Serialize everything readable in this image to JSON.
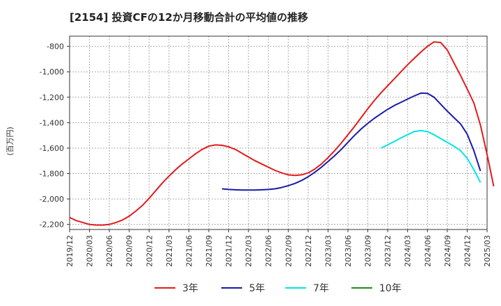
{
  "chart_data": {
    "type": "line",
    "title": "[2154]  投資CFの12か月移動合計の平均値の推移",
    "ylabel": "(百万円)",
    "xlabel": "",
    "ylim": [
      -2240,
      -720
    ],
    "yticks": [
      -800,
      -1000,
      -1200,
      -1400,
      -1600,
      -1800,
      -2000,
      -2200
    ],
    "ytick_labels": [
      "-800",
      "-1,000",
      "-1,200",
      "-1,400",
      "-1,600",
      "-1,800",
      "-2,000",
      "-2,200"
    ],
    "x_range": [
      "2019/12",
      "2025/03"
    ],
    "xtick_labels": [
      "2019/12",
      "2020/03",
      "2020/06",
      "2020/09",
      "2020/12",
      "2021/03",
      "2021/06",
      "2021/09",
      "2021/12",
      "2022/03",
      "2022/06",
      "2022/09",
      "2022/12",
      "2023/03",
      "2023/06",
      "2023/09",
      "2023/12",
      "2024/03",
      "2024/06",
      "2024/09",
      "2024/12",
      "2025/03"
    ],
    "grid": true,
    "legend_position": "bottom",
    "series": [
      {
        "name": "3年",
        "color": "#e31a1c",
        "points": [
          [
            "2019/12",
            -2145
          ],
          [
            "2020/01",
            -2170
          ],
          [
            "2020/02",
            -2185
          ],
          [
            "2020/03",
            -2200
          ],
          [
            "2020/04",
            -2205
          ],
          [
            "2020/05",
            -2205
          ],
          [
            "2020/06",
            -2200
          ],
          [
            "2020/07",
            -2185
          ],
          [
            "2020/08",
            -2165
          ],
          [
            "2020/09",
            -2135
          ],
          [
            "2020/10",
            -2095
          ],
          [
            "2020/11",
            -2050
          ],
          [
            "2020/12",
            -1995
          ],
          [
            "2021/01",
            -1935
          ],
          [
            "2021/02",
            -1875
          ],
          [
            "2021/03",
            -1820
          ],
          [
            "2021/04",
            -1770
          ],
          [
            "2021/05",
            -1725
          ],
          [
            "2021/06",
            -1685
          ],
          [
            "2021/07",
            -1645
          ],
          [
            "2021/08",
            -1610
          ],
          [
            "2021/09",
            -1585
          ],
          [
            "2021/10",
            -1575
          ],
          [
            "2021/11",
            -1578
          ],
          [
            "2021/12",
            -1590
          ],
          [
            "2022/01",
            -1610
          ],
          [
            "2022/02",
            -1640
          ],
          [
            "2022/03",
            -1670
          ],
          [
            "2022/04",
            -1700
          ],
          [
            "2022/05",
            -1725
          ],
          [
            "2022/06",
            -1750
          ],
          [
            "2022/07",
            -1775
          ],
          [
            "2022/08",
            -1795
          ],
          [
            "2022/09",
            -1810
          ],
          [
            "2022/10",
            -1815
          ],
          [
            "2022/11",
            -1810
          ],
          [
            "2022/12",
            -1795
          ],
          [
            "2023/01",
            -1765
          ],
          [
            "2023/02",
            -1725
          ],
          [
            "2023/03",
            -1675
          ],
          [
            "2023/04",
            -1620
          ],
          [
            "2023/05",
            -1560
          ],
          [
            "2023/06",
            -1495
          ],
          [
            "2023/07",
            -1430
          ],
          [
            "2023/08",
            -1360
          ],
          [
            "2023/09",
            -1290
          ],
          [
            "2023/10",
            -1225
          ],
          [
            "2023/11",
            -1165
          ],
          [
            "2023/12",
            -1110
          ],
          [
            "2024/01",
            -1055
          ],
          [
            "2024/02",
            -1000
          ],
          [
            "2024/03",
            -945
          ],
          [
            "2024/04",
            -895
          ],
          [
            "2024/05",
            -845
          ],
          [
            "2024/06",
            -800
          ],
          [
            "2024/07",
            -765
          ],
          [
            "2024/08",
            -770
          ],
          [
            "2024/09",
            -830
          ],
          [
            "2024/10",
            -930
          ],
          [
            "2024/11",
            -1030
          ],
          [
            "2024/12",
            -1135
          ],
          [
            "2025/01",
            -1245
          ],
          [
            "2025/02",
            -1420
          ],
          [
            "2025/03",
            -1650
          ],
          [
            "2025/04",
            -1900
          ]
        ]
      },
      {
        "name": "5年",
        "color": "#1a1aa8",
        "points": [
          [
            "2021/11",
            -1920
          ],
          [
            "2021/12",
            -1925
          ],
          [
            "2022/01",
            -1928
          ],
          [
            "2022/02",
            -1930
          ],
          [
            "2022/03",
            -1930
          ],
          [
            "2022/04",
            -1930
          ],
          [
            "2022/05",
            -1928
          ],
          [
            "2022/06",
            -1925
          ],
          [
            "2022/07",
            -1920
          ],
          [
            "2022/08",
            -1910
          ],
          [
            "2022/09",
            -1895
          ],
          [
            "2022/10",
            -1878
          ],
          [
            "2022/11",
            -1855
          ],
          [
            "2022/12",
            -1825
          ],
          [
            "2023/01",
            -1790
          ],
          [
            "2023/02",
            -1750
          ],
          [
            "2023/03",
            -1705
          ],
          [
            "2023/04",
            -1660
          ],
          [
            "2023/05",
            -1610
          ],
          [
            "2023/06",
            -1555
          ],
          [
            "2023/07",
            -1500
          ],
          [
            "2023/08",
            -1450
          ],
          [
            "2023/09",
            -1405
          ],
          [
            "2023/10",
            -1365
          ],
          [
            "2023/11",
            -1330
          ],
          [
            "2023/12",
            -1295
          ],
          [
            "2024/01",
            -1265
          ],
          [
            "2024/02",
            -1240
          ],
          [
            "2024/03",
            -1215
          ],
          [
            "2024/04",
            -1190
          ],
          [
            "2024/05",
            -1168
          ],
          [
            "2024/06",
            -1170
          ],
          [
            "2024/07",
            -1200
          ],
          [
            "2024/08",
            -1255
          ],
          [
            "2024/09",
            -1310
          ],
          [
            "2024/10",
            -1360
          ],
          [
            "2024/11",
            -1410
          ],
          [
            "2024/12",
            -1490
          ],
          [
            "2025/01",
            -1620
          ],
          [
            "2025/02",
            -1780
          ]
        ]
      },
      {
        "name": "7年",
        "color": "#00e5e5",
        "points": [
          [
            "2023/11",
            -1600
          ],
          [
            "2023/12",
            -1575
          ],
          [
            "2024/01",
            -1548
          ],
          [
            "2024/02",
            -1520
          ],
          [
            "2024/03",
            -1495
          ],
          [
            "2024/04",
            -1470
          ],
          [
            "2024/05",
            -1462
          ],
          [
            "2024/06",
            -1470
          ],
          [
            "2024/07",
            -1495
          ],
          [
            "2024/08",
            -1525
          ],
          [
            "2024/09",
            -1555
          ],
          [
            "2024/10",
            -1585
          ],
          [
            "2024/11",
            -1620
          ],
          [
            "2024/12",
            -1680
          ],
          [
            "2025/01",
            -1770
          ],
          [
            "2025/02",
            -1870
          ]
        ]
      },
      {
        "name": "10年",
        "color": "#228b22",
        "points": []
      }
    ]
  }
}
